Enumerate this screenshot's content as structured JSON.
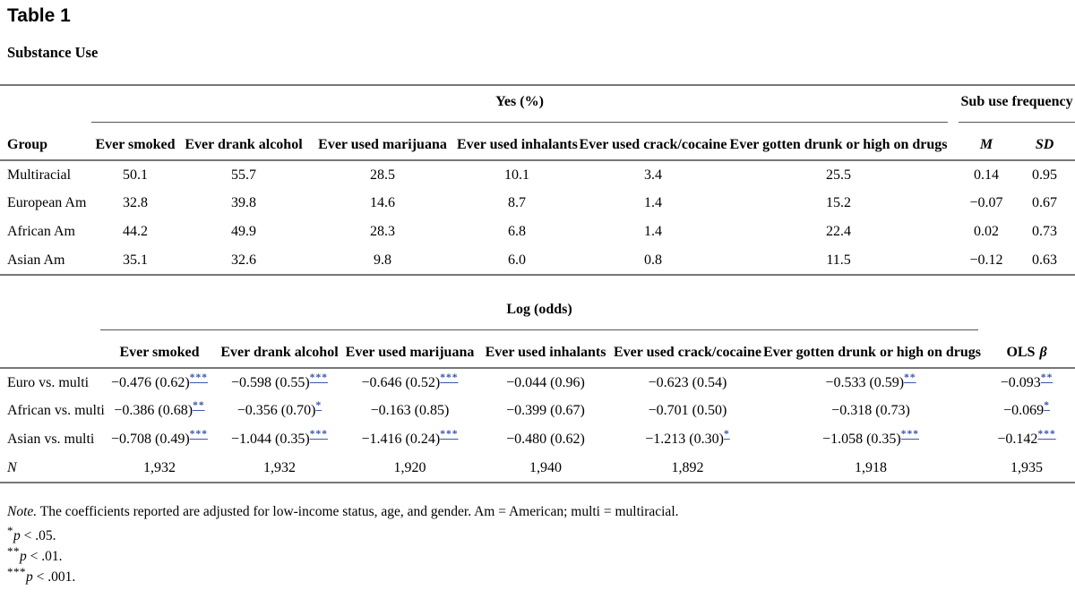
{
  "page": {
    "table_label": "Table 1",
    "table_title": "Substance Use"
  },
  "colors": {
    "sig_link": "#3b55a8",
    "rule_gray": "#777777"
  },
  "section1": {
    "spanner_yes": "Yes (%)",
    "spanner_freq": "Sub use frequency",
    "col_headers": [
      "Group",
      "Ever smoked",
      "Ever drank alcohol",
      "Ever used marijuana",
      "Ever used inhalants",
      "Ever used crack/cocaine",
      "Ever gotten drunk or high on drugs",
      "M",
      "SD"
    ],
    "rows": [
      {
        "label": "Multiracial",
        "values": [
          "50.1",
          "55.7",
          "28.5",
          "10.1",
          "3.4",
          "25.5",
          "0.14",
          "0.95"
        ]
      },
      {
        "label": "European Am",
        "values": [
          "32.8",
          "39.8",
          "14.6",
          "8.7",
          "1.4",
          "15.2",
          "−0.07",
          "0.67"
        ]
      },
      {
        "label": "African Am",
        "values": [
          "44.2",
          "49.9",
          "28.3",
          "6.8",
          "1.4",
          "22.4",
          "0.02",
          "0.73"
        ]
      },
      {
        "label": "Asian Am",
        "values": [
          "35.1",
          "32.6",
          "9.8",
          "6.0",
          "0.8",
          "11.5",
          "−0.12",
          "0.63"
        ]
      }
    ]
  },
  "section2": {
    "spanner": "Log (odds)",
    "col_headers": [
      "",
      "Ever smoked",
      "Ever drank alcohol",
      "Ever used marijuana",
      "Ever used inhalants",
      "Ever used crack/cocaine",
      "Ever gotten drunk or high on drugs"
    ],
    "ols_label": "OLS",
    "ols_beta": "β",
    "rows": [
      {
        "label": "Euro vs. multi",
        "cells": [
          {
            "v": "−0.476 (0.62)",
            "sig": "***"
          },
          {
            "v": "−0.598 (0.55)",
            "sig": "***"
          },
          {
            "v": "−0.646 (0.52)",
            "sig": "***"
          },
          {
            "v": "−0.044 (0.96)",
            "sig": ""
          },
          {
            "v": "−0.623 (0.54)",
            "sig": ""
          },
          {
            "v": "−0.533 (0.59)",
            "sig": "**"
          },
          {
            "v": "−0.093",
            "sig": "**"
          }
        ]
      },
      {
        "label": "African vs. multi",
        "cells": [
          {
            "v": "−0.386 (0.68)",
            "sig": "**"
          },
          {
            "v": "−0.356 (0.70)",
            "sig": "*"
          },
          {
            "v": "−0.163 (0.85)",
            "sig": ""
          },
          {
            "v": "−0.399 (0.67)",
            "sig": ""
          },
          {
            "v": "−0.701 (0.50)",
            "sig": ""
          },
          {
            "v": "−0.318 (0.73)",
            "sig": ""
          },
          {
            "v": "−0.069",
            "sig": "*"
          }
        ]
      },
      {
        "label": "Asian vs. multi",
        "cells": [
          {
            "v": "−0.708 (0.49)",
            "sig": "***"
          },
          {
            "v": "−1.044 (0.35)",
            "sig": "***"
          },
          {
            "v": "−1.416 (0.24)",
            "sig": "***"
          },
          {
            "v": "−0.480 (0.62)",
            "sig": ""
          },
          {
            "v": "−1.213 (0.30)",
            "sig": "*"
          },
          {
            "v": "−1.058 (0.35)",
            "sig": "***"
          },
          {
            "v": "−0.142",
            "sig": "***"
          }
        ]
      }
    ],
    "n_row": {
      "label": "N",
      "values": [
        "1,932",
        "1,932",
        "1,920",
        "1,940",
        "1,892",
        "1,918",
        "1,935"
      ]
    }
  },
  "notes": {
    "note_lead": "Note.",
    "note_text": " The coefficients reported are adjusted for low-income status, age, and gender. Am = American; multi = multiracial.",
    "footnotes": [
      {
        "marker": "*",
        "p": "p",
        "rest": " < .05."
      },
      {
        "marker": "**",
        "p": "p",
        "rest": " < .01."
      },
      {
        "marker": "***",
        "p": "p",
        "rest": " < .001."
      }
    ]
  }
}
